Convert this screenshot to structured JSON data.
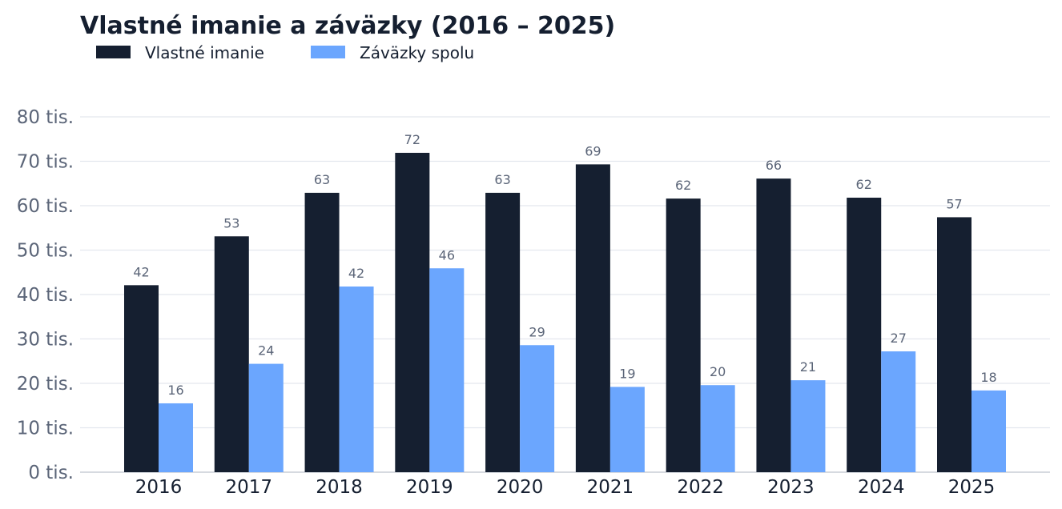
{
  "chart_data": {
    "type": "bar",
    "title": "Vlastné imanie a záväzky (2016 – 2025)",
    "categories": [
      "2016",
      "2017",
      "2018",
      "2019",
      "2020",
      "2021",
      "2022",
      "2023",
      "2024",
      "2025"
    ],
    "series": [
      {
        "name": "Vlastné imanie",
        "color": "#151f30",
        "values": [
          42100,
          53100,
          62900,
          71900,
          62900,
          69300,
          61600,
          66100,
          61800,
          57400
        ],
        "labels": [
          "42",
          "53",
          "63",
          "72",
          "63",
          "69",
          "62",
          "66",
          "62",
          "57"
        ]
      },
      {
        "name": "Záväzky spolu",
        "color": "#6ba6fe",
        "values": [
          15500,
          24400,
          41800,
          45900,
          28600,
          19200,
          19600,
          20700,
          27200,
          18400
        ],
        "labels": [
          "16",
          "24",
          "42",
          "46",
          "29",
          "19",
          "20",
          "21",
          "27",
          "18"
        ]
      }
    ],
    "yticks": [
      "0 tis.",
      "10 tis.",
      "20 tis.",
      "30 tis.",
      "40 tis.",
      "50 tis.",
      "60 tis.",
      "70 tis.",
      "80 tis."
    ],
    "ylim": [
      0,
      80000
    ],
    "grid": true,
    "legend_position": "top-left"
  }
}
